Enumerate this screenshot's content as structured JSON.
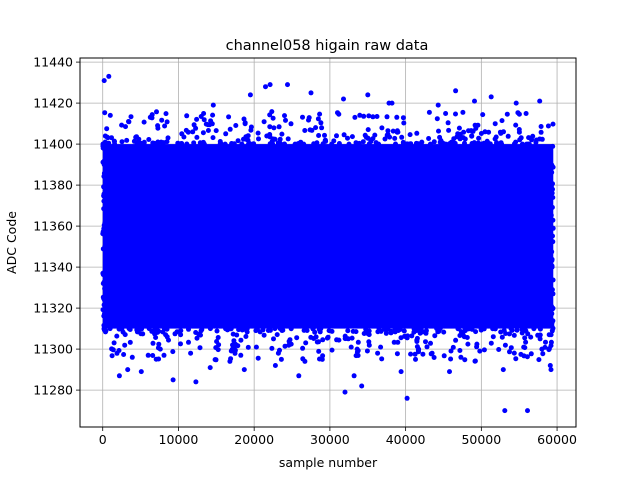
{
  "chart_data": {
    "type": "scatter",
    "title": "channel058 higain raw data",
    "xlabel": "sample number",
    "ylabel": "ADC Code",
    "xlim": [
      -3000,
      62500
    ],
    "ylim": [
      11262,
      11442
    ],
    "xticks": [
      0,
      10000,
      20000,
      30000,
      40000,
      50000,
      60000
    ],
    "xtick_labels": [
      "0",
      "10000",
      "20000",
      "30000",
      "40000",
      "50000",
      "60000"
    ],
    "yticks": [
      11280,
      11300,
      11320,
      11340,
      11360,
      11380,
      11400,
      11420,
      11440
    ],
    "ytick_labels": [
      "11280",
      "11300",
      "11320",
      "11340",
      "11360",
      "11380",
      "11400",
      "11420",
      "11440"
    ],
    "grid": true,
    "marker": "circle",
    "color": "#0000ff",
    "core_band": {
      "x_range": [
        0,
        59500
      ],
      "y_range": [
        11310,
        11400
      ]
    },
    "series": [
      {
        "x": [
          200,
          1000,
          2200,
          3300,
          5100,
          7600,
          9300,
          12300,
          14200,
          16800,
          18700,
          19500,
          21500,
          22100,
          22800,
          23600,
          24400,
          25900,
          27500,
          29000,
          32000,
          33200,
          34200,
          35000,
          36300,
          37800,
          39400,
          40200,
          44300,
          45800,
          46600,
          49100,
          51300,
          53100,
          54600,
          56100,
          57700,
          59200,
          800,
          1500,
          3900,
          6000,
          11600,
          14600,
          17400,
          20300,
          23200,
          26700,
          31800,
          33600,
          36700,
          38200,
          41300,
          43500,
          47300,
          49800,
          52900,
          55600,
          58000,
          59100
        ],
        "y": [
          11431,
          11414,
          11287,
          11290,
          11289,
          11300,
          11285,
          11284,
          11291,
          11294,
          11290,
          11424,
          11428,
          11429,
          11292,
          11295,
          11429,
          11287,
          11425,
          11295,
          11279,
          11287,
          11282,
          11424,
          11298,
          11420,
          11289,
          11276,
          11419,
          11289,
          11426,
          11421,
          11423,
          11270,
          11420,
          11270,
          11421,
          11290,
          11433,
          11303,
          11296,
          11297,
          11298,
          11419,
          11300,
          11301,
          11298,
          11294,
          11422,
          11300,
          11301,
          11420,
          11295,
          11298,
          11296,
          11299,
          11290,
          11301,
          11300,
          11292
        ]
      }
    ]
  }
}
